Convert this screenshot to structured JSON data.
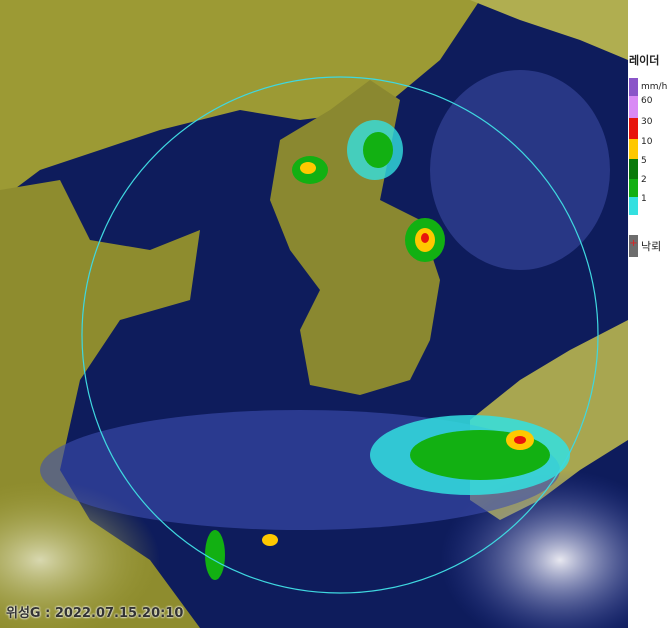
{
  "legend": {
    "title": "레이더",
    "unit": "mm/h",
    "levels": [
      {
        "label": "60",
        "color": "#d98af5"
      },
      {
        "label": "30",
        "color": "#e8140c"
      },
      {
        "label": "10",
        "color": "#ffc800"
      },
      {
        "label": "5",
        "color": "#0a7a0a"
      },
      {
        "label": "2",
        "color": "#12b012"
      },
      {
        "label": "1",
        "color": "#33e0e0"
      }
    ],
    "top_color": "#8a55c8",
    "lightning_label": "낙뢰",
    "lightning_symbol": "+"
  },
  "timestamp": "위성G : 2022.07.15.20:10",
  "colors": {
    "ocean": "#0e1c5c",
    "cloud": "#9c9a34",
    "radar_range": "#3fd8e0"
  }
}
